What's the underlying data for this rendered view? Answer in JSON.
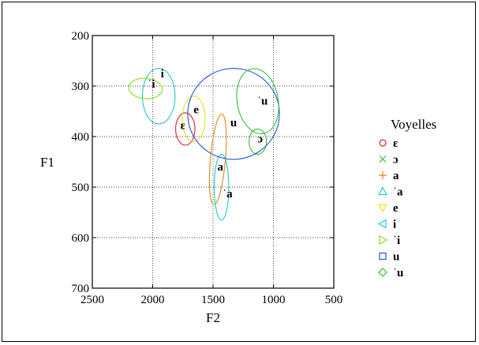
{
  "chart_data": {
    "type": "scatter",
    "title": "",
    "xlabel": "F2",
    "ylabel": "F1",
    "xlim": [
      2500,
      500
    ],
    "ylim": [
      700,
      200
    ],
    "x_reversed": true,
    "y_reversed": true,
    "xticks": [
      2500,
      2000,
      1500,
      1000,
      500
    ],
    "yticks": [
      200,
      300,
      400,
      500,
      600,
      700
    ],
    "grid": true,
    "legend_title": "Voyelles",
    "legend_position": "right",
    "series": [
      {
        "name": "ɛ",
        "marker": "circle",
        "color": "#e8201c",
        "ellipse": {
          "cx": 1730,
          "cy": 385,
          "rx": 80,
          "ry": 32
        }
      },
      {
        "name": "ɔ",
        "marker": "cross",
        "color": "#33bb33",
        "ellipse": {
          "cx": 1130,
          "cy": 410,
          "rx": 72,
          "ry": 25
        }
      },
      {
        "name": "a",
        "marker": "plus",
        "color": "#dd8811",
        "ellipse": {
          "cx": 1460,
          "cy": 445,
          "rx": 62,
          "ry": 90,
          "angle": 5
        }
      },
      {
        "name": "ˈa",
        "marker": "triangle-up",
        "color": "#22c8c8",
        "ellipse": {
          "cx": 1430,
          "cy": 500,
          "rx": 60,
          "ry": 65
        }
      },
      {
        "name": "e",
        "marker": "triangle-down",
        "color": "#e8e022",
        "ellipse": {
          "cx": 1660,
          "cy": 365,
          "rx": 95,
          "ry": 45
        }
      },
      {
        "name": "i",
        "marker": "triangle-left",
        "color": "#22c8c8",
        "ellipse": {
          "cx": 1950,
          "cy": 320,
          "rx": 135,
          "ry": 55
        }
      },
      {
        "name": "ˈi",
        "marker": "triangle-right",
        "color": "#88dd22",
        "ellipse": {
          "cx": 2060,
          "cy": 305,
          "rx": 140,
          "ry": 20,
          "angle": 5
        }
      },
      {
        "name": "u",
        "marker": "square",
        "color": "#2255dd",
        "ellipse": {
          "cx": 1330,
          "cy": 355,
          "rx": 380,
          "ry": 90,
          "angle": -12
        }
      },
      {
        "name": "ˈu",
        "marker": "diamond",
        "color": "#33bb33",
        "ellipse": {
          "cx": 1130,
          "cy": 330,
          "rx": 170,
          "ry": 65,
          "angle": -10
        }
      }
    ],
    "annotations": [
      {
        "text": "i",
        "x": 1920,
        "y": 283
      },
      {
        "text": "ˈi",
        "x": 2010,
        "y": 303
      },
      {
        "text": "e",
        "x": 1640,
        "y": 354
      },
      {
        "text": "ɛ",
        "x": 1750,
        "y": 385
      },
      {
        "text": "a",
        "x": 1440,
        "y": 467
      },
      {
        "text": "ˈa",
        "x": 1380,
        "y": 520
      },
      {
        "text": "u",
        "x": 1330,
        "y": 380
      },
      {
        "text": "ˈu",
        "x": 1090,
        "y": 337
      },
      {
        "text": "ɔ",
        "x": 1110,
        "y": 412
      }
    ]
  }
}
